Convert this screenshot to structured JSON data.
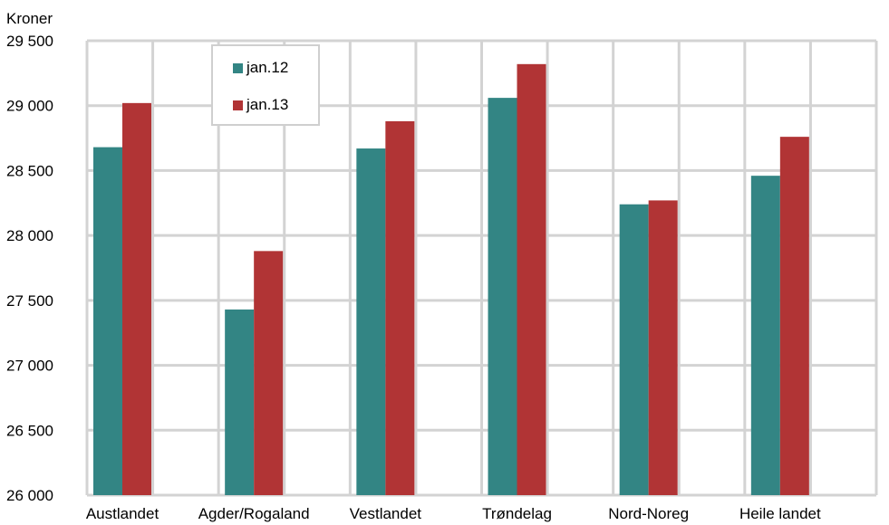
{
  "chart_data": {
    "type": "bar",
    "ylabel": "Kroner",
    "xlabel": "",
    "title": "",
    "categories": [
      "Austlandet",
      "Agder/Rogaland",
      "Vestlandet",
      "Trøndelag",
      "Nord-Noreg",
      "Heile landet"
    ],
    "series": [
      {
        "name": "jan.12",
        "color": "#338584",
        "values": [
          28680,
          27430,
          28670,
          29060,
          28240,
          28460
        ]
      },
      {
        "name": "jan.13",
        "color": "#b13435",
        "values": [
          29020,
          27880,
          28880,
          29320,
          28270,
          28760
        ]
      }
    ],
    "ylim": [
      26000,
      29500
    ],
    "yticks": [
      26000,
      26500,
      27000,
      27500,
      28000,
      28500,
      29000,
      29500
    ],
    "ytick_labels": [
      "26 000",
      "26 500",
      "27 000",
      "27 500",
      "28 000",
      "28 500",
      "29 000",
      "29 500"
    ],
    "grid": true,
    "legend_position": "top-left"
  }
}
